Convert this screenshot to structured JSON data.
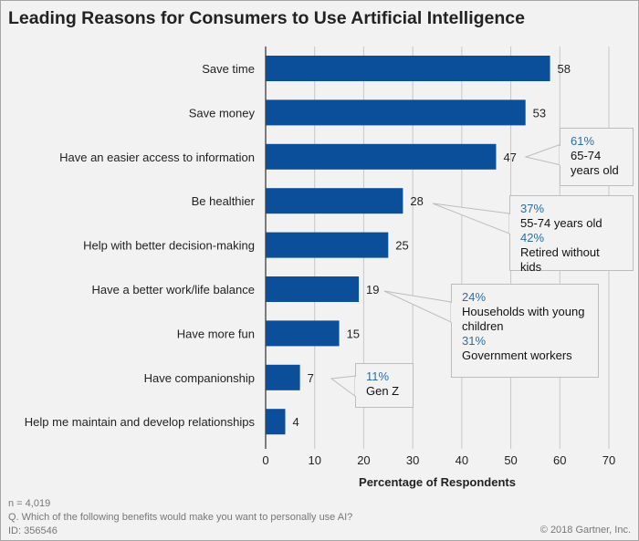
{
  "title": "Leading Reasons for Consumers to Use Artificial Intelligence",
  "chart_data": {
    "type": "bar",
    "orientation": "horizontal",
    "title": "Leading Reasons for Consumers to Use Artificial Intelligence",
    "xlabel": "Percentage of Respondents",
    "ylabel": "",
    "xlim": [
      0,
      70
    ],
    "xticks": [
      0,
      10,
      20,
      30,
      40,
      50,
      60,
      70
    ],
    "grid": "vertical",
    "bar_color": "#0b4e9a",
    "categories": [
      "Save time",
      "Save money",
      "Have an easier access to information",
      "Be healthier",
      "Help with better decision-making",
      "Have a better work/life balance",
      "Have more fun",
      "Have companionship",
      "Help me maintain and develop relationships"
    ],
    "values": [
      58,
      53,
      47,
      28,
      25,
      19,
      15,
      7,
      4
    ],
    "annotations": [
      {
        "category_index": 2,
        "lines": [
          {
            "pct": "61%",
            "text": "65-74 years old"
          }
        ]
      },
      {
        "category_index": 3,
        "lines": [
          {
            "pct": "37%",
            "text": "55-74 years old"
          },
          {
            "pct": "42%",
            "text": "Retired without kids"
          }
        ]
      },
      {
        "category_index": 5,
        "lines": [
          {
            "pct": "24%",
            "text": "Households with young children"
          },
          {
            "pct": "31%",
            "text": "Government workers"
          }
        ]
      },
      {
        "category_index": 7,
        "lines": [
          {
            "pct": "11%",
            "text": "Gen Z"
          }
        ]
      }
    ]
  },
  "footnotes": {
    "n": "n = 4,019",
    "question": "Q. Which of the following benefits would make you want to personally use AI?",
    "id": "ID: 356546",
    "copyright": "© 2018 Gartner, Inc."
  }
}
